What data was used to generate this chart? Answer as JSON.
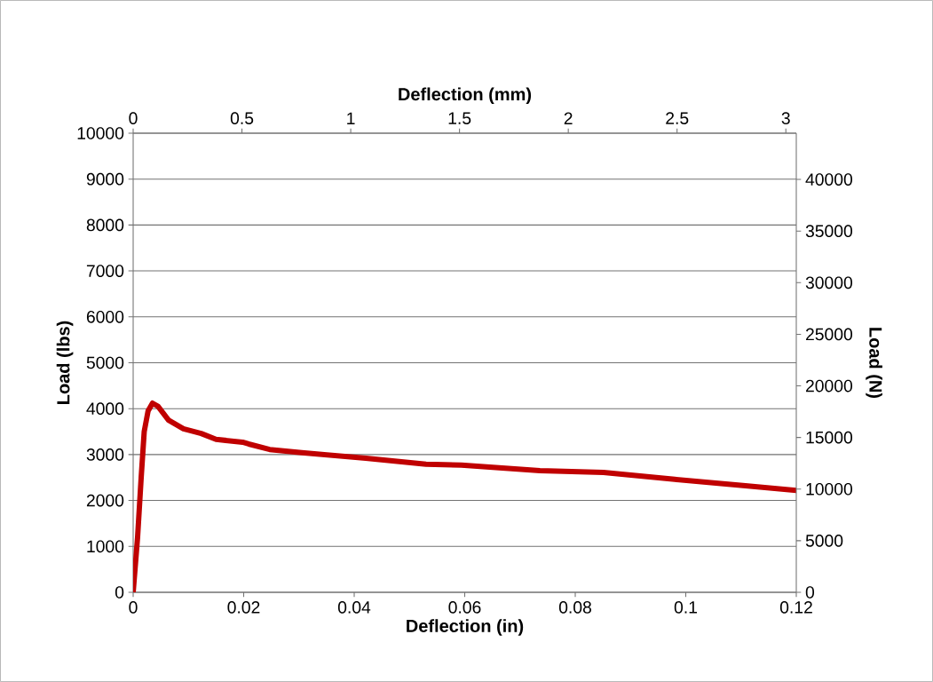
{
  "chart_data": {
    "type": "line",
    "xlabel": "Deflection (in)",
    "ylabel": "Load (lbs)",
    "x2label": "Deflection (mm)",
    "y2label": "Load (N)",
    "xlim": [
      0,
      0.12
    ],
    "xticks": [
      0,
      0.02,
      0.04,
      0.06,
      0.08,
      0.1,
      0.12
    ],
    "ylim": [
      0,
      10000
    ],
    "yticks": [
      0,
      1000,
      2000,
      3000,
      4000,
      5000,
      6000,
      7000,
      8000,
      9000,
      10000
    ],
    "x2lim": [
      0,
      3.048
    ],
    "x2ticks": [
      0,
      0.5,
      1,
      1.5,
      2,
      2.5,
      3
    ],
    "y2lim": [
      0,
      44482
    ],
    "y2ticks": [
      0,
      5000,
      10000,
      15000,
      20000,
      25000,
      30000,
      35000,
      40000
    ],
    "grid": "y",
    "line_style": "solid",
    "series": [
      {
        "color": "#c00000",
        "x": [
          0,
          0.0008,
          0.00145,
          0.002,
          0.0027,
          0.0035,
          0.0045,
          0.0064,
          0.0091,
          0.0123,
          0.015,
          0.0198,
          0.0209,
          0.0247,
          0.0305,
          0.0421,
          0.053,
          0.0594,
          0.0736,
          0.0851,
          0.098,
          0.1108,
          0.12
        ],
        "values": [
          0,
          1200,
          2500,
          3500,
          3950,
          4120,
          4050,
          3750,
          3560,
          3460,
          3330,
          3270,
          3230,
          3110,
          3040,
          2920,
          2790,
          2770,
          2650,
          2610,
          2460,
          2320,
          2220
        ]
      }
    ]
  }
}
